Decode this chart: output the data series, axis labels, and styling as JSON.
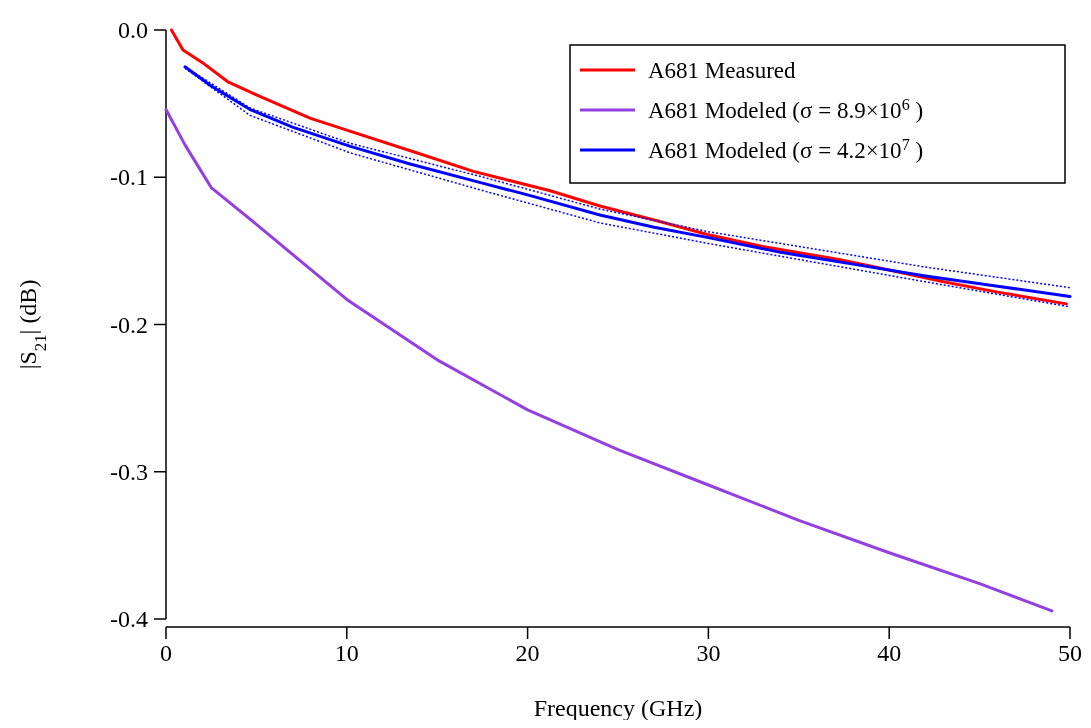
{
  "chart_data": {
    "type": "line",
    "xlabel": "Frequency (GHz)",
    "ylabel": "|S$_{21}$| (dB)",
    "xlim": [
      0,
      50
    ],
    "xticks": [
      0,
      10,
      20,
      30,
      40,
      50
    ],
    "ylim": [
      -0.4,
      0.0
    ],
    "yticks": [
      {
        "value": 0,
        "label": "0.0"
      },
      -0.1,
      -0.2,
      -0.3,
      -0.4
    ],
    "grid": false,
    "legend": "top right",
    "line_style": "solid",
    "series": [
      {
        "name": "A681 Measured",
        "color": "#ff0000",
        "x": [
          0.3,
          0.94,
          2,
          3.4,
          5,
          8,
          10,
          13.9,
          17,
          21.2,
          24,
          27,
          30,
          33,
          37.3,
          40,
          43,
          46,
          49.8
        ],
        "values": [
          0.0,
          -0.0136,
          -0.022,
          -0.035,
          -0.044,
          -0.06,
          -0.068,
          -0.0835,
          -0.096,
          -0.109,
          -0.1195,
          -0.129,
          -0.139,
          -0.147,
          -0.156,
          -0.163,
          -0.171,
          -0.178,
          -0.186
        ]
      },
      {
        "name": "A681 Modeled (σ = 8.9×10$^{6}$ )",
        "color": "#9440e0",
        "x": [
          0,
          1.05,
          1.9,
          2.5,
          5,
          10,
          15,
          20,
          25,
          30,
          35,
          40,
          45,
          49
        ],
        "values": [
          -0.054,
          -0.078,
          -0.095,
          -0.107,
          -0.132,
          -0.183,
          -0.224,
          -0.258,
          -0.285,
          -0.309,
          -0.333,
          -0.355,
          -0.376,
          -0.3945
        ]
      },
      {
        "name": "A681 Modeled (σ = 4.2×10$^{7}$ )",
        "color": "#0000ff",
        "x": [
          1.05,
          2.5,
          4.65,
          7,
          10.2,
          13.5,
          17.5,
          20,
          24,
          27,
          30,
          34,
          38,
          42,
          46,
          50
        ],
        "values": [
          -0.025,
          -0.038,
          -0.054,
          -0.066,
          -0.079,
          -0.091,
          -0.104,
          -0.112,
          -0.1256,
          -0.134,
          -0.141,
          -0.151,
          -0.159,
          -0.167,
          -0.174,
          -0.181
        ]
      },
      {
        "color": "#0000ff",
        "line_style": "dotted",
        "x": [
          1.05,
          4.65,
          10.2,
          17.5,
          24,
          30,
          36,
          42,
          50
        ],
        "values": [
          -0.025,
          -0.053,
          -0.077,
          -0.0998,
          -0.1216,
          -0.137,
          -0.149,
          -0.161,
          -0.175
        ]
      },
      {
        "color": "#0000ff",
        "line_style": "dotted",
        "x": [
          1.05,
          4.65,
          10.2,
          17.5,
          24,
          30,
          36,
          42,
          50
        ],
        "values": [
          -0.026,
          -0.058,
          -0.0835,
          -0.109,
          -0.131,
          -0.145,
          -0.158,
          -0.171,
          -0.188
        ]
      }
    ]
  }
}
